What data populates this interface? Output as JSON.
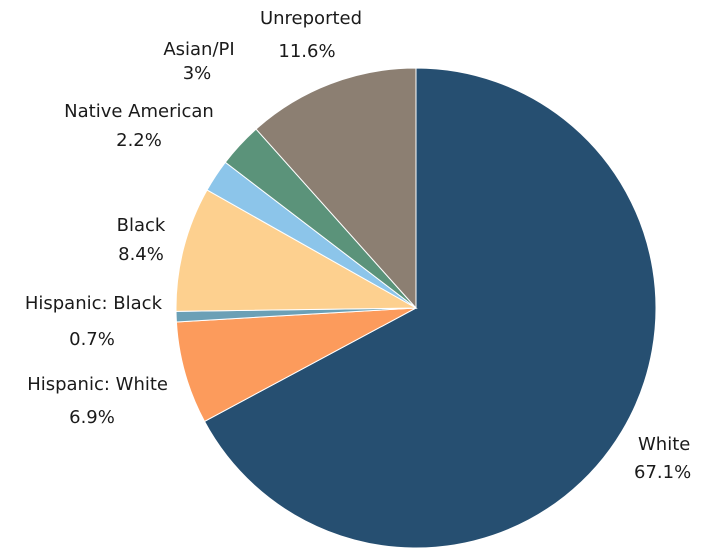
{
  "chart_data": {
    "type": "pie",
    "title": "",
    "start": "12 o'clock",
    "direction": "clockwise",
    "legend": "none",
    "slices": [
      {
        "name": "White",
        "value": 67.1,
        "label_value": "67.1%",
        "color": "#264f71"
      },
      {
        "name": "Hispanic: White",
        "value": 6.9,
        "label_value": "6.9%",
        "color": "#fc9b5c"
      },
      {
        "name": "Hispanic: Black",
        "value": 0.7,
        "label_value": "0.7%",
        "color": "#6ba0b6"
      },
      {
        "name": "Black",
        "value": 8.4,
        "label_value": "8.4%",
        "color": "#fdd08f"
      },
      {
        "name": "Native American",
        "value": 2.2,
        "label_value": "2.2%",
        "color": "#8cc5ea"
      },
      {
        "name": "Asian/PI",
        "value": 3,
        "label_value": "3%",
        "color": "#5b937a"
      },
      {
        "name": "Unreported",
        "value": 11.6,
        "label_value": "11.6%",
        "color": "#8c7f72"
      }
    ]
  }
}
